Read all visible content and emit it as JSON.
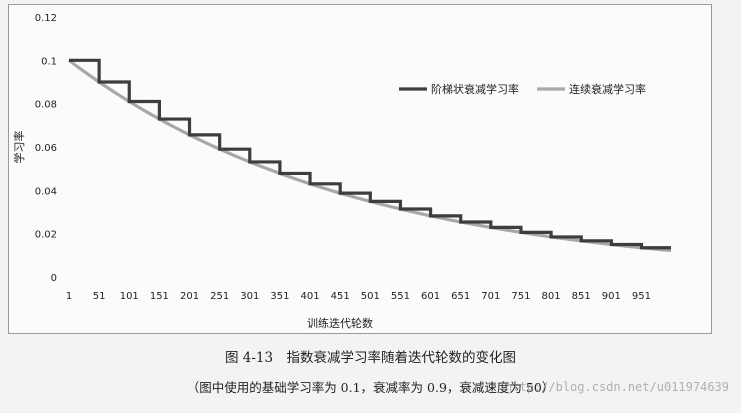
{
  "chart_data": {
    "type": "line",
    "ylabel": "学习率",
    "xlabel": "训练迭代轮数",
    "ylim": [
      0,
      0.12
    ],
    "yticks": [
      "0",
      "0.02",
      "0.04",
      "0.06",
      "0.08",
      "0.1",
      "0.12"
    ],
    "xlim": [
      1,
      1000
    ],
    "xticks": [
      "1",
      "51",
      "101",
      "151",
      "201",
      "251",
      "301",
      "351",
      "401",
      "451",
      "501",
      "551",
      "601",
      "651",
      "701",
      "751",
      "801",
      "851",
      "901",
      "951"
    ],
    "grid": false,
    "legend_position": "right",
    "series": [
      {
        "name": "阶梯状衰减学习率",
        "style": "staircase",
        "color": "#3d3d3d",
        "x": [
          1,
          51,
          101,
          151,
          201,
          251,
          301,
          351,
          401,
          451,
          501,
          551,
          601,
          651,
          701,
          751,
          801,
          851,
          901,
          951,
          1000
        ],
        "values": [
          0.1,
          0.09,
          0.081,
          0.0729,
          0.0656,
          0.059,
          0.0531,
          0.0478,
          0.043,
          0.0387,
          0.0349,
          0.0314,
          0.0282,
          0.0254,
          0.0229,
          0.0206,
          0.0185,
          0.0167,
          0.015,
          0.0135,
          0.0135
        ]
      },
      {
        "name": "连续衰减学习率",
        "style": "smooth",
        "color": "#a8a8a8",
        "x": [
          1,
          51,
          101,
          151,
          201,
          251,
          301,
          351,
          401,
          451,
          501,
          551,
          601,
          651,
          701,
          751,
          801,
          851,
          901,
          951,
          1000
        ],
        "values": [
          0.1,
          0.09,
          0.081,
          0.0729,
          0.0656,
          0.059,
          0.0531,
          0.0478,
          0.043,
          0.0387,
          0.0349,
          0.0314,
          0.0282,
          0.0254,
          0.0229,
          0.0206,
          0.0185,
          0.0167,
          0.015,
          0.0135,
          0.0122
        ]
      }
    ]
  },
  "caption": "图 4-13　指数衰减学习率随着迭代轮数的变化图",
  "subcaption": "（图中使用的基础学习率为 0.1，衰减率为 0.9，衰减速度为 50）",
  "watermark": "http://blog.csdn.net/u011974639"
}
